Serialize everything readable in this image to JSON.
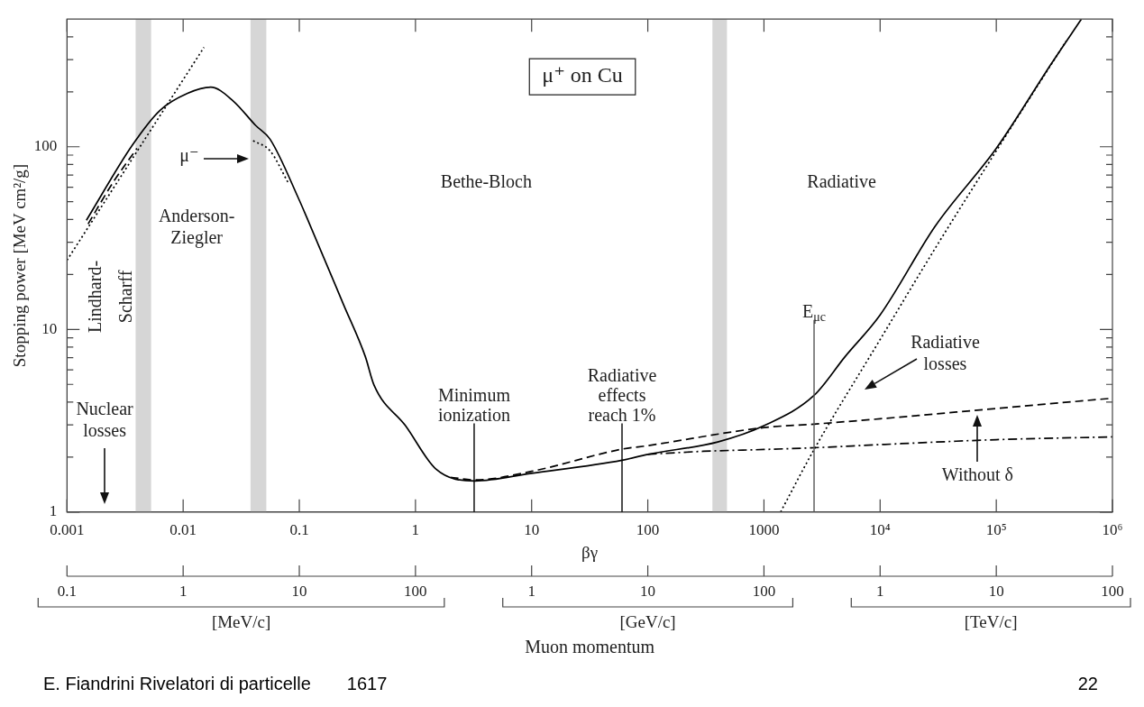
{
  "chart_data": {
    "type": "line",
    "xlabel": "βγ",
    "ylabel": "Stopping power [MeV cm²/g]",
    "log": "xy",
    "xlim": [
      0.001,
      1000000
    ],
    "ylim": [
      1,
      500
    ],
    "xticks": [
      0.001,
      0.01,
      0.1,
      1,
      10,
      100,
      1000,
      {
        "value": 10000,
        "label": "10⁴"
      },
      {
        "value": 100000,
        "label": "10⁵"
      },
      {
        "value": 1000000,
        "label": "10⁶"
      }
    ],
    "yticks": [
      1,
      {
        "value": 2,
        "label": null
      },
      {
        "value": 3,
        "label": null
      },
      {
        "value": 4,
        "label": null
      },
      {
        "value": 5,
        "label": null
      },
      {
        "value": 6,
        "label": null
      },
      {
        "value": 7,
        "label": null
      },
      {
        "value": 8,
        "label": null
      },
      {
        "value": 9,
        "label": null
      },
      10,
      {
        "value": 20,
        "label": null
      },
      {
        "value": 30,
        "label": null
      },
      {
        "value": 40,
        "label": null
      },
      {
        "value": 50,
        "label": null
      },
      {
        "value": 60,
        "label": null
      },
      {
        "value": 70,
        "label": null
      },
      {
        "value": 80,
        "label": null
      },
      {
        "value": 90,
        "label": null
      },
      100,
      {
        "value": 200,
        "label": null
      },
      {
        "value": 300,
        "label": null
      },
      {
        "value": 400,
        "label": null
      }
    ],
    "series": [
      {
        "color": "#000000",
        "line_style": "solid",
        "x": [
          0.00147,
          0.00365,
          0.0063,
          0.0109,
          0.0173,
          0.027,
          0.042,
          0.056,
          0.1,
          0.116,
          0.24,
          0.37,
          0.44,
          0.82,
          1.5,
          3.25,
          10,
          60,
          100,
          400,
          1000,
          2700,
          5000,
          10000,
          30000,
          100000,
          300000,
          540000
        ],
        "values": [
          39.6,
          102,
          158,
          196,
          212,
          178,
          131,
          110,
          51,
          41,
          13.7,
          7.1,
          4.95,
          2.97,
          1.72,
          1.48,
          1.63,
          1.92,
          2.07,
          2.42,
          2.97,
          4.35,
          7.1,
          12,
          37,
          98,
          287,
          500
        ]
      },
      {
        "color": "#000000",
        "line_style": "dashed",
        "x": [
          0.00152,
          0.0025,
          0.004
        ],
        "values": [
          37.8,
          64,
          98
        ]
      },
      {
        "color": "#000000",
        "line_style": "dotted",
        "x": [
          0.001,
          0.0151
        ],
        "values": [
          23.9,
          350
        ]
      },
      {
        "color": "#000000",
        "line_style": "dotted",
        "x": [
          0.04,
          0.056,
          0.081
        ],
        "values": [
          108,
          95,
          62.8
        ]
      },
      {
        "color": "#000000",
        "line_style": "dashed",
        "x": [
          2,
          3.25,
          10,
          60,
          100,
          1000,
          2700,
          10000,
          100000,
          1000000
        ],
        "values": [
          1.55,
          1.5,
          1.67,
          2.21,
          2.31,
          2.9,
          3.03,
          3.24,
          3.69,
          4.2
        ]
      },
      {
        "color": "#000000",
        "line_style": "dashdot",
        "x": [
          100,
          300,
          1000,
          2700,
          10000,
          100000,
          1000000
        ],
        "values": [
          2.07,
          2.15,
          2.2,
          2.25,
          2.34,
          2.49,
          2.58
        ]
      },
      {
        "color": "#000000",
        "line_style": "dotted",
        "x": [
          1390,
          2700,
          10000,
          30000,
          100000,
          400000
        ],
        "values": [
          1,
          2.2,
          8.8,
          28,
          95,
          380
        ]
      }
    ],
    "bands": [
      {
        "axis": "x",
        "from": 0.0039,
        "to": 0.0053,
        "color": "#d6d6d6"
      },
      {
        "axis": "x",
        "from": 0.038,
        "to": 0.052,
        "color": "#d6d6d6"
      },
      {
        "axis": "x",
        "from": 360,
        "to": 480,
        "color": "#d6d6d6"
      }
    ],
    "ref_lines": [
      {
        "axis": "x",
        "value": 3.2,
        "label": "Minimum\nionization"
      },
      {
        "axis": "x",
        "value": 60,
        "label": "Radiative\neffects\nreach 1%"
      },
      {
        "axis": "x",
        "value": 2700,
        "label": "E$_{μc}$",
        "color": "#555555"
      }
    ],
    "annotations": [
      "μ⁺ on Cu",
      "Bethe-Bloch",
      "Radiative",
      "Anderson-\nZiegler",
      "Lindhard-\nScharff",
      "Nuclear\nlosses",
      "μ⁻",
      "Radiative\nlosses",
      "Without δ",
      "0.1",
      "1",
      "10",
      "100",
      "1",
      "10",
      "100",
      "1",
      "10",
      "100",
      "[MeV/c]",
      "[GeV/c]",
      "[TeV/c]",
      "Muon momentum",
      "E. Fiandrini Rivelatori di particelle",
      "1617",
      "22"
    ]
  }
}
